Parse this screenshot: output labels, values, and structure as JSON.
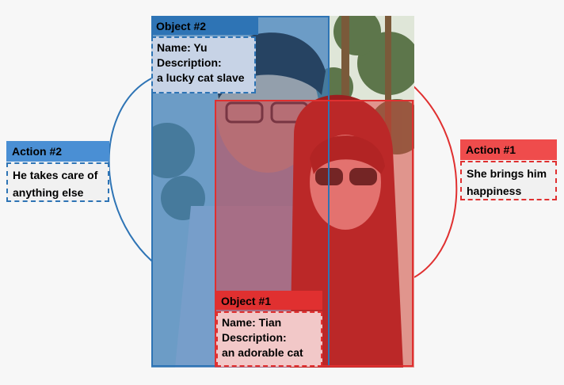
{
  "object2": {
    "title": "Object #2",
    "name": "Name: Yu",
    "desc_label": "Description:",
    "desc": "a lucky cat slave",
    "color": "#2e74b5"
  },
  "object1": {
    "title": "Object #1",
    "name": "Name: Tian",
    "desc_label": "Description:",
    "desc": "an adorable cat",
    "color": "#e03030"
  },
  "action2": {
    "title": "Action #2",
    "line1": "He takes care of",
    "line2": "anything else",
    "color": "#2e74b5"
  },
  "action1": {
    "title": "Action #1",
    "line1": "She brings him",
    "line2": "happiness",
    "color": "#e03030"
  }
}
